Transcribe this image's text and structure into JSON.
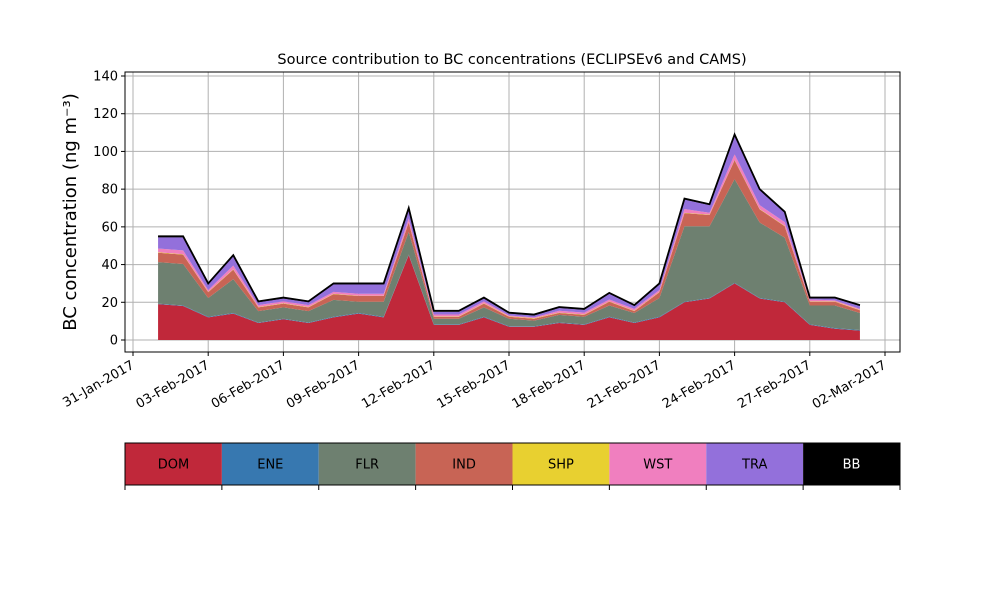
{
  "chart_data": {
    "type": "stacked_area",
    "title": "Source contribution to BC concentrations (ECLIPSEv6 and CAMS)",
    "y_label": "BC concentration (ng m⁻³)",
    "x": [
      "2017-02-01",
      "2017-02-02",
      "2017-02-03",
      "2017-02-04",
      "2017-02-05",
      "2017-02-06",
      "2017-02-07",
      "2017-02-08",
      "2017-02-09",
      "2017-02-10",
      "2017-02-11",
      "2017-02-12",
      "2017-02-13",
      "2017-02-14",
      "2017-02-15",
      "2017-02-16",
      "2017-02-17",
      "2017-02-18",
      "2017-02-19",
      "2017-02-20",
      "2017-02-21",
      "2017-02-22",
      "2017-02-23",
      "2017-02-24",
      "2017-02-25",
      "2017-02-26",
      "2017-02-27",
      "2017-02-28",
      "2017-03-01"
    ],
    "series": [
      {
        "name": "DOM",
        "color": "#c0283a",
        "values": [
          19,
          18,
          12,
          14,
          9,
          11,
          9,
          12,
          14,
          12,
          45,
          8,
          8,
          12,
          7,
          7,
          9,
          8,
          12,
          9,
          12,
          20,
          22,
          30,
          22,
          20,
          8,
          6,
          5
        ]
      },
      {
        "name": "ENE",
        "color": "#3778b0",
        "values": [
          0.3,
          0.3,
          0.3,
          0.3,
          0.3,
          0.3,
          0.3,
          0.3,
          0.3,
          0.3,
          0.3,
          0.3,
          0.3,
          0.3,
          0.3,
          0.3,
          0.3,
          0.3,
          0.3,
          0.3,
          0.3,
          0.3,
          0.3,
          0.3,
          0.3,
          0.3,
          0.3,
          0.3,
          0.3
        ]
      },
      {
        "name": "FLR",
        "color": "#6e8070",
        "values": [
          22,
          22,
          10,
          18,
          6,
          6,
          6,
          9,
          6,
          8,
          12,
          3,
          3,
          5,
          4,
          3,
          4,
          4,
          6,
          5,
          10,
          40,
          38,
          55,
          40,
          34,
          10,
          12,
          9
        ]
      },
      {
        "name": "IND",
        "color": "#c86455",
        "values": [
          5,
          5,
          3,
          5,
          2,
          2,
          2,
          3,
          3,
          3,
          5,
          1,
          1,
          2,
          1,
          1,
          1,
          1,
          2,
          1,
          3,
          7,
          6,
          10,
          7,
          6,
          2,
          2,
          1.5
        ]
      },
      {
        "name": "SHP",
        "color": "#e8d030",
        "values": [
          0.2,
          0.2,
          0.2,
          0.2,
          0.2,
          0.2,
          0.2,
          0.2,
          0.2,
          0.2,
          0.2,
          0.2,
          0.2,
          0.2,
          0.2,
          0.2,
          0.2,
          0.2,
          0.2,
          0.2,
          0.2,
          0.2,
          0.2,
          0.2,
          0.2,
          0.2,
          0.2,
          0.2,
          0.2
        ]
      },
      {
        "name": "WST",
        "color": "#f07fbf",
        "values": [
          2,
          2,
          1,
          2,
          1,
          1,
          1,
          1,
          1,
          1,
          2,
          1,
          1,
          1,
          0.5,
          0.5,
          1,
          1,
          1,
          1,
          1,
          2,
          1,
          3,
          2,
          2,
          1,
          0.5,
          0.5
        ]
      },
      {
        "name": "TRA",
        "color": "#9370db",
        "values": [
          6,
          7,
          3,
          5,
          1.5,
          1.5,
          1.5,
          4,
          5,
          5,
          5,
          1.5,
          1.5,
          1.5,
          1,
          1,
          1.5,
          1.5,
          3,
          1.5,
          3,
          5,
          4,
          10,
          8,
          5,
          0.5,
          1,
          1.5
        ]
      },
      {
        "name": "BB",
        "color": "#000000",
        "values": [
          0.5,
          0.5,
          0.5,
          0.5,
          0.5,
          0.5,
          0.5,
          0.5,
          0.5,
          0.5,
          0.5,
          0.5,
          0.5,
          0.5,
          0.5,
          0.5,
          0.5,
          0.5,
          0.5,
          0.5,
          0.5,
          0.5,
          0.5,
          0.5,
          0.5,
          0.5,
          0.5,
          0.5,
          0.5
        ]
      }
    ],
    "xlim": [
      "2017-01-31",
      "2017-03-02"
    ],
    "xticks": [
      {
        "value": "2017-01-31",
        "label": "31-Jan-2017"
      },
      {
        "value": "2017-02-03",
        "label": "03-Feb-2017"
      },
      {
        "value": "2017-02-06",
        "label": "06-Feb-2017"
      },
      {
        "value": "2017-02-09",
        "label": "09-Feb-2017"
      },
      {
        "value": "2017-02-12",
        "label": "12-Feb-2017"
      },
      {
        "value": "2017-02-15",
        "label": "15-Feb-2017"
      },
      {
        "value": "2017-02-18",
        "label": "18-Feb-2017"
      },
      {
        "value": "2017-02-21",
        "label": "21-Feb-2017"
      },
      {
        "value": "2017-02-24",
        "label": "24-Feb-2017"
      },
      {
        "value": "2017-02-27",
        "label": "27-Feb-2017"
      },
      {
        "value": "2017-03-02",
        "label": "02-Mar-2017"
      }
    ],
    "ylim": [
      0,
      140
    ],
    "yticks": [
      0,
      20,
      40,
      60,
      80,
      100,
      120,
      140
    ],
    "grid": true
  }
}
